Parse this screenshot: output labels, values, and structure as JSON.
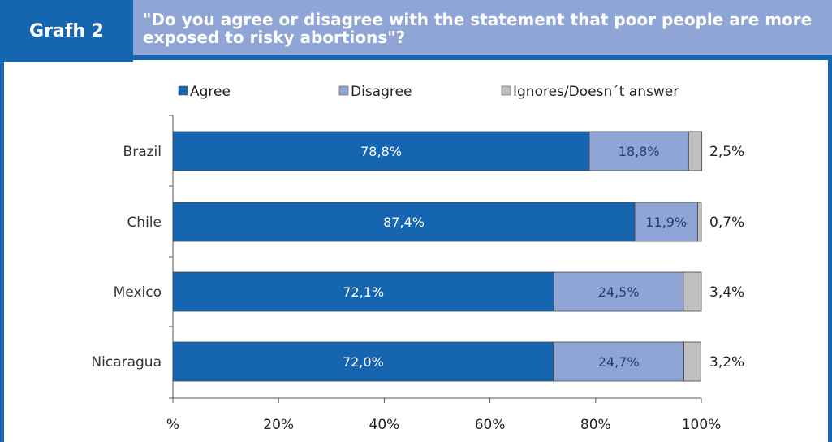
{
  "header": {
    "badge": "Grafh 2",
    "title": "\"Do you agree or disagree with the statement that poor people are more exposed to risky abortions\"?"
  },
  "colors": {
    "agree": "#1565b0",
    "disagree": "#8fa5d6",
    "ignores": "#c0c0c0",
    "frame": "#1565b0"
  },
  "chart_data": {
    "type": "bar",
    "orientation": "horizontal",
    "stacked": true,
    "categories": [
      "Brazil",
      "Chile",
      "Mexico",
      "Nicaragua"
    ],
    "series": [
      {
        "name": "Agree",
        "values": [
          78.8,
          87.4,
          72.1,
          72.0
        ],
        "labels": [
          "78,8%",
          "87,4%",
          "72,1%",
          "72,0%"
        ]
      },
      {
        "name": "Disagree",
        "values": [
          18.8,
          11.9,
          24.5,
          24.7
        ],
        "labels": [
          "18,8%",
          "11,9%",
          "24,5%",
          "24,7%"
        ]
      },
      {
        "name": "Ignores/Doesn´t answer",
        "values": [
          2.5,
          0.7,
          3.4,
          3.2
        ],
        "labels": [
          "2,5%",
          "0,7%",
          "3,4%",
          "3,2%"
        ]
      }
    ],
    "xlim": [
      0,
      100
    ],
    "xticks": [
      0,
      20,
      40,
      60,
      80,
      100
    ],
    "xtick_labels": [
      "%",
      "20%",
      "40%",
      "60%",
      "80%",
      "100%"
    ],
    "legend_position": "top",
    "grid": false
  }
}
